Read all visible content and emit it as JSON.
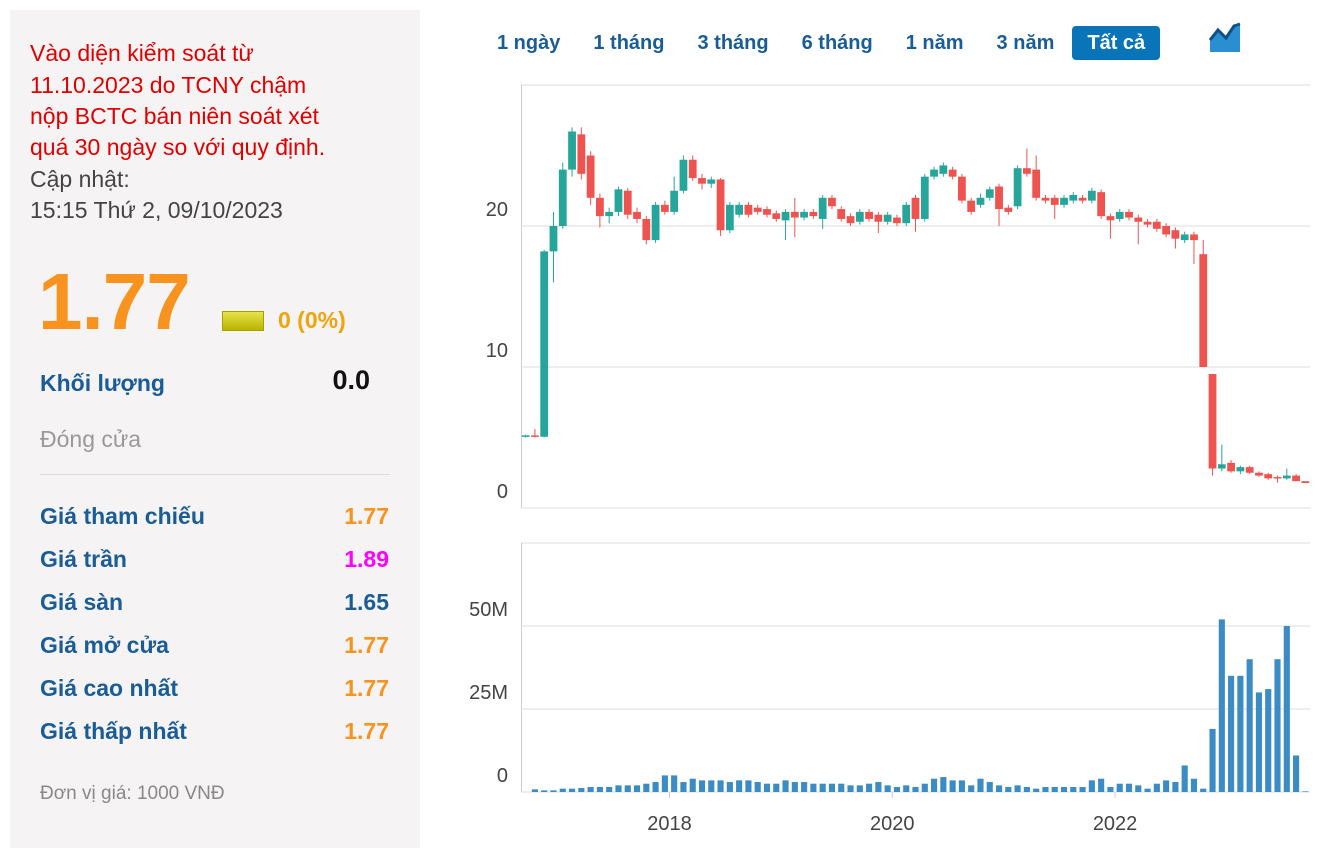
{
  "info": {
    "notice": [
      "Vào diện kiểm soát từ",
      "11.10.2023 do TCNY chậm",
      "nộp BCTC bán niên soát xét",
      "quá 30 ngày so với quy định."
    ],
    "updated_label": "Cập nhật:",
    "updated_time": "15:15 Thứ 2, 09/10/2023",
    "price": "1.77",
    "change": "0 (0%)",
    "volume_label": "Khối lượng",
    "volume": "0.0",
    "status": "Đóng cửa",
    "rows": [
      {
        "label": "Giá tham chiếu",
        "value": "1.77",
        "color": "#f7931e"
      },
      {
        "label": "Giá trần",
        "value": "1.89",
        "color": "#ff00ff"
      },
      {
        "label": "Giá sàn",
        "value": "1.65",
        "color": "#1a5d96"
      },
      {
        "label": "Giá mở cửa",
        "value": "1.77",
        "color": "#f7931e"
      },
      {
        "label": "Giá cao nhất",
        "value": "1.77",
        "color": "#f7931e"
      },
      {
        "label": "Giá thấp nhất",
        "value": "1.77",
        "color": "#f7931e"
      }
    ],
    "unit_note": "Đơn vị giá: 1000 VNĐ",
    "ranges": [
      {
        "label": "1 ngày"
      },
      {
        "label": "1 tháng"
      },
      {
        "label": "3 tháng"
      },
      {
        "label": "6 tháng"
      },
      {
        "label": "1 năm"
      },
      {
        "label": "3 năm"
      },
      {
        "label": "Tất cả",
        "active": true
      }
    ]
  },
  "chart_data": [
    {
      "type": "candlestick",
      "up_color": "#26a69a",
      "down_color": "#ef5350",
      "grid": true,
      "ylim": [
        0,
        30
      ],
      "yticks": [
        0,
        10,
        20
      ],
      "open": [
        5.1,
        5.15,
        5.05,
        18.2,
        20.0,
        24.0,
        26.5,
        25.0,
        22.0,
        20.7,
        21.0,
        22.5,
        21.0,
        20.5,
        19.0,
        21.5,
        21.0,
        22.5,
        24.7,
        23.4,
        23.0,
        23.3,
        19.7,
        20.8,
        21.5,
        21.3,
        21.2,
        20.9,
        20.4,
        21.0,
        20.6,
        21.0,
        20.5,
        22.0,
        21.2,
        20.7,
        20.3,
        21.0,
        20.8,
        20.3,
        20.6,
        20.2,
        22.0,
        20.5,
        23.5,
        23.7,
        24.0,
        23.5,
        21.8,
        21.5,
        22.0,
        22.8,
        21.3,
        21.4,
        24.1,
        24.0,
        22.0,
        22.0,
        21.5,
        21.8,
        22.0,
        21.8,
        22.4,
        20.7,
        20.5,
        21.0,
        20.6,
        20.3,
        20.3,
        20.0,
        19.7,
        19.0,
        19.4,
        18.0,
        9.5,
        2.8,
        3.2,
        2.6,
        2.9,
        2.5,
        2.4,
        2.2,
        2.1,
        2.3,
        1.9
      ],
      "high": [
        5.2,
        5.6,
        18.3,
        21.0,
        24.5,
        27.0,
        27.0,
        25.3,
        22.3,
        21.3,
        22.8,
        22.7,
        21.3,
        20.7,
        21.7,
        21.8,
        23.5,
        25.0,
        25.0,
        23.7,
        23.5,
        23.4,
        21.7,
        21.7,
        21.7,
        21.5,
        21.4,
        21.1,
        21.2,
        22.0,
        21.2,
        21.2,
        22.2,
        22.2,
        21.4,
        20.9,
        21.2,
        21.2,
        21.0,
        21.0,
        20.8,
        21.7,
        22.2,
        23.7,
        24.2,
        24.5,
        24.2,
        23.7,
        22.0,
        22.3,
        22.8,
        23.0,
        21.5,
        24.3,
        25.5,
        25.0,
        22.2,
        22.2,
        22.2,
        22.4,
        22.2,
        22.7,
        22.6,
        20.9,
        21.2,
        21.2,
        20.8,
        20.5,
        20.5,
        20.2,
        19.9,
        19.6,
        19.6,
        19.0,
        9.5,
        4.5,
        3.4,
        3.0,
        3.0,
        2.6,
        2.5,
        2.3,
        2.8,
        2.4,
        1.9
      ],
      "low": [
        5.0,
        5.0,
        5.0,
        16.0,
        19.8,
        23.5,
        23.3,
        21.5,
        19.9,
        20.2,
        20.7,
        20.5,
        20.2,
        18.7,
        18.8,
        20.8,
        20.8,
        22.3,
        23.2,
        22.6,
        22.7,
        19.3,
        19.5,
        20.6,
        20.6,
        20.8,
        20.6,
        20.3,
        19.0,
        19.2,
        20.4,
        20.5,
        19.8,
        21.2,
        20.3,
        20.0,
        20.1,
        20.3,
        19.5,
        20.1,
        20.0,
        20.0,
        19.6,
        20.3,
        23.3,
        23.5,
        23.3,
        21.6,
        20.8,
        21.3,
        21.8,
        20.0,
        20.8,
        21.2,
        23.5,
        21.8,
        21.6,
        20.5,
        21.3,
        21.6,
        21.6,
        21.6,
        20.5,
        19.1,
        20.3,
        20.4,
        18.7,
        19.9,
        19.6,
        19.2,
        18.4,
        18.8,
        17.3,
        10.0,
        2.3,
        2.6,
        2.5,
        2.4,
        2.4,
        2.2,
        2.0,
        1.8,
        2.0,
        1.9,
        1.77
      ],
      "close": [
        5.15,
        5.05,
        18.2,
        20.0,
        24.0,
        26.7,
        23.7,
        22.0,
        20.7,
        21.0,
        22.6,
        20.8,
        20.5,
        19.0,
        21.5,
        21.0,
        22.5,
        24.7,
        23.4,
        23.0,
        23.3,
        19.7,
        21.5,
        21.5,
        20.8,
        21.0,
        20.8,
        20.5,
        21.0,
        20.6,
        21.0,
        20.7,
        22.0,
        21.4,
        20.5,
        20.2,
        21.0,
        20.5,
        20.3,
        20.8,
        20.2,
        21.5,
        20.5,
        23.5,
        24.0,
        24.3,
        23.5,
        21.8,
        21.0,
        22.0,
        22.6,
        21.2,
        21.0,
        24.1,
        23.7,
        22.0,
        21.8,
        21.5,
        22.0,
        22.2,
        21.8,
        22.5,
        20.7,
        20.4,
        21.0,
        20.6,
        20.3,
        20.1,
        19.8,
        19.4,
        19.1,
        19.4,
        19.0,
        10.0,
        2.8,
        3.1,
        2.6,
        2.9,
        2.5,
        2.3,
        2.1,
        2.1,
        2.3,
        1.9,
        1.77
      ]
    },
    {
      "type": "bar",
      "color": "#3b8bc4",
      "grid": true,
      "ylim": [
        0,
        75000000
      ],
      "yticks": [
        0,
        {
          "value": 25000000,
          "label": "25M"
        },
        {
          "value": 50000000,
          "label": "50M"
        }
      ],
      "categories": [
        null,
        null,
        null,
        null,
        null,
        null,
        null,
        null,
        null,
        null,
        null,
        null,
        null,
        null,
        null,
        null,
        "2018",
        null,
        null,
        null,
        null,
        null,
        null,
        null,
        null,
        null,
        null,
        null,
        null,
        null,
        null,
        null,
        null,
        null,
        null,
        null,
        null,
        null,
        null,
        null,
        "2020",
        null,
        null,
        null,
        null,
        null,
        null,
        null,
        null,
        null,
        null,
        null,
        null,
        null,
        null,
        null,
        null,
        null,
        null,
        null,
        null,
        null,
        null,
        null,
        "2022",
        null,
        null,
        null,
        null,
        null,
        null,
        null,
        null,
        null,
        null,
        null,
        null,
        null,
        null,
        null,
        null,
        null,
        null,
        null,
        null
      ],
      "values": [
        0,
        800000,
        500000,
        500000,
        1000000,
        1000000,
        1200000,
        1500000,
        1500000,
        1500000,
        2000000,
        2000000,
        2000000,
        2500000,
        3000000,
        5000000,
        5000000,
        3000000,
        4000000,
        3500000,
        3500000,
        3500000,
        3000000,
        3500000,
        3500000,
        3000000,
        2500000,
        2500000,
        3500000,
        3000000,
        3000000,
        2500000,
        2500000,
        2500000,
        2500000,
        2000000,
        2000000,
        2500000,
        3000000,
        2000000,
        1500000,
        2000000,
        1500000,
        2500000,
        4000000,
        4500000,
        3500000,
        3500000,
        2000000,
        4000000,
        3000000,
        2000000,
        1500000,
        2000000,
        1500000,
        1000000,
        1500000,
        1500000,
        1500000,
        1500000,
        1500000,
        3500000,
        4000000,
        1500000,
        2500000,
        2500000,
        2000000,
        1000000,
        2500000,
        3500000,
        3000000,
        8000000,
        4000000,
        1000000,
        19000000,
        52000000,
        35000000,
        35000000,
        40000000,
        30000000,
        31000000,
        40000000,
        50000000,
        11000000,
        200000
      ]
    }
  ]
}
